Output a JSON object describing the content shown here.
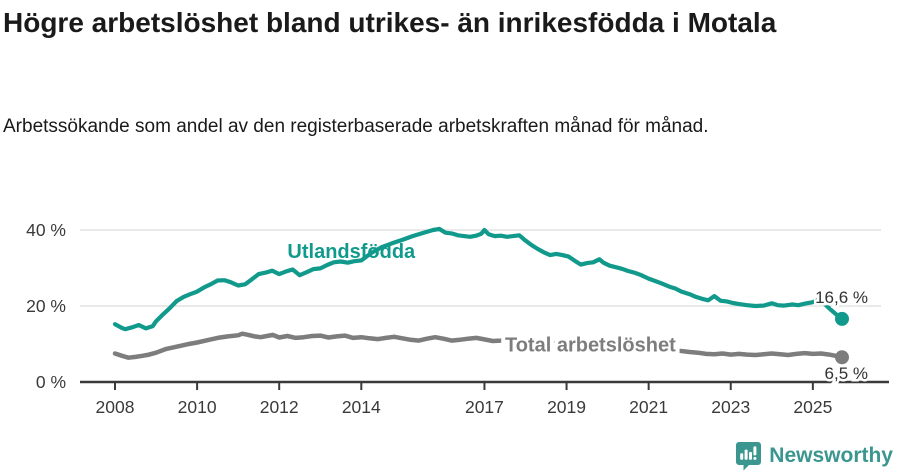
{
  "header": {
    "title": "Högre arbetslöshet bland utrikes- än inrikesfödda i Motala",
    "subtitle": "Arbetssökande som andel av den registerbaserade arbetskraften månad för månad."
  },
  "footer": {
    "brand": "Newsworthy",
    "logo_icon": "newsworthy-bubble-barchart-icon",
    "brand_color": "#3a968f"
  },
  "colors": {
    "foreign_born_line": "#119a8c",
    "total_line": "#7d7d7d",
    "axis": "#3a3a3a",
    "grid": "#e2e2e2",
    "text": "#1a1a1a"
  },
  "chart_data": {
    "type": "line",
    "title": "Högre arbetslöshet bland utrikes- än inrikesfödda i Motala",
    "subtitle": "Arbetssökande som andel av den registerbaserade arbetskraften månad för månad.",
    "unit": "%",
    "grid": "horizontal",
    "legend_position": "inline-labels",
    "xlim": [
      2007.75,
      2026.1
    ],
    "ylim": [
      0,
      43
    ],
    "x_ticks": [
      {
        "value": 2008,
        "label": "2008"
      },
      {
        "value": 2010,
        "label": "2010"
      },
      {
        "value": 2012,
        "label": "2012"
      },
      {
        "value": 2014,
        "label": "2014"
      },
      {
        "value": 2017,
        "label": "2017"
      },
      {
        "value": 2019,
        "label": "2019"
      },
      {
        "value": 2021,
        "label": "2021"
      },
      {
        "value": 2023,
        "label": "2023"
      },
      {
        "value": 2025,
        "label": "2025"
      }
    ],
    "y_ticks": [
      {
        "value": 0,
        "label": "0 %"
      },
      {
        "value": 20,
        "label": "20 %"
      },
      {
        "value": 40,
        "label": "40 %"
      }
    ],
    "series": [
      {
        "name": "Utlandsfödda",
        "color": "#119a8c",
        "line_width": 4.2,
        "label_anchor": {
          "x": 2012.2,
          "y": 32.6
        },
        "end_label": "16,6 %",
        "end_value": 16.6,
        "points": [
          [
            2008.0,
            15.2
          ],
          [
            2008.17,
            14.2
          ],
          [
            2008.25,
            13.9
          ],
          [
            2008.42,
            14.4
          ],
          [
            2008.58,
            15.0
          ],
          [
            2008.75,
            14.1
          ],
          [
            2008.92,
            14.7
          ],
          [
            2009.0,
            16.0
          ],
          [
            2009.17,
            17.8
          ],
          [
            2009.33,
            19.4
          ],
          [
            2009.5,
            21.3
          ],
          [
            2009.67,
            22.4
          ],
          [
            2009.83,
            23.1
          ],
          [
            2010.0,
            23.8
          ],
          [
            2010.17,
            24.9
          ],
          [
            2010.33,
            25.7
          ],
          [
            2010.5,
            26.7
          ],
          [
            2010.67,
            26.8
          ],
          [
            2010.83,
            26.2
          ],
          [
            2011.0,
            25.4
          ],
          [
            2011.17,
            25.7
          ],
          [
            2011.33,
            27.0
          ],
          [
            2011.5,
            28.4
          ],
          [
            2011.67,
            28.8
          ],
          [
            2011.83,
            29.3
          ],
          [
            2012.0,
            28.4
          ],
          [
            2012.17,
            29.1
          ],
          [
            2012.33,
            29.6
          ],
          [
            2012.5,
            28.1
          ],
          [
            2012.67,
            28.9
          ],
          [
            2012.83,
            29.7
          ],
          [
            2013.0,
            29.9
          ],
          [
            2013.17,
            30.8
          ],
          [
            2013.33,
            31.5
          ],
          [
            2013.5,
            31.7
          ],
          [
            2013.67,
            31.4
          ],
          [
            2013.83,
            31.8
          ],
          [
            2014.0,
            32.0
          ],
          [
            2014.25,
            34.0
          ],
          [
            2014.5,
            35.5
          ],
          [
            2014.75,
            36.5
          ],
          [
            2015.0,
            37.4
          ],
          [
            2015.25,
            38.4
          ],
          [
            2015.5,
            39.2
          ],
          [
            2015.75,
            40.0
          ],
          [
            2015.9,
            40.3
          ],
          [
            2016.05,
            39.3
          ],
          [
            2016.2,
            39.1
          ],
          [
            2016.35,
            38.6
          ],
          [
            2016.5,
            38.4
          ],
          [
            2016.65,
            38.2
          ],
          [
            2016.8,
            38.5
          ],
          [
            2016.92,
            39.0
          ],
          [
            2017.0,
            40.0
          ],
          [
            2017.1,
            38.9
          ],
          [
            2017.25,
            38.4
          ],
          [
            2017.4,
            38.5
          ],
          [
            2017.55,
            38.2
          ],
          [
            2017.7,
            38.4
          ],
          [
            2017.85,
            38.6
          ],
          [
            2018.0,
            37.2
          ],
          [
            2018.15,
            36.0
          ],
          [
            2018.3,
            35.0
          ],
          [
            2018.45,
            34.1
          ],
          [
            2018.6,
            33.4
          ],
          [
            2018.75,
            33.7
          ],
          [
            2018.9,
            33.4
          ],
          [
            2019.05,
            33.0
          ],
          [
            2019.2,
            31.9
          ],
          [
            2019.35,
            30.9
          ],
          [
            2019.5,
            31.3
          ],
          [
            2019.65,
            31.5
          ],
          [
            2019.8,
            32.3
          ],
          [
            2019.9,
            31.4
          ],
          [
            2020.05,
            30.6
          ],
          [
            2020.2,
            30.2
          ],
          [
            2020.35,
            29.8
          ],
          [
            2020.5,
            29.2
          ],
          [
            2020.65,
            28.8
          ],
          [
            2020.8,
            28.2
          ],
          [
            2021.0,
            27.2
          ],
          [
            2021.15,
            26.6
          ],
          [
            2021.3,
            26.0
          ],
          [
            2021.5,
            25.1
          ],
          [
            2021.65,
            24.6
          ],
          [
            2021.8,
            23.8
          ],
          [
            2022.0,
            23.1
          ],
          [
            2022.15,
            22.4
          ],
          [
            2022.3,
            21.9
          ],
          [
            2022.45,
            21.5
          ],
          [
            2022.6,
            22.6
          ],
          [
            2022.75,
            21.4
          ],
          [
            2022.9,
            21.2
          ],
          [
            2023.05,
            20.8
          ],
          [
            2023.2,
            20.5
          ],
          [
            2023.4,
            20.2
          ],
          [
            2023.6,
            20.0
          ],
          [
            2023.8,
            20.1
          ],
          [
            2024.0,
            20.7
          ],
          [
            2024.15,
            20.2
          ],
          [
            2024.3,
            20.1
          ],
          [
            2024.5,
            20.4
          ],
          [
            2024.65,
            20.2
          ],
          [
            2024.8,
            20.6
          ],
          [
            2025.0,
            21.0
          ],
          [
            2025.15,
            21.7
          ],
          [
            2025.3,
            20.4
          ],
          [
            2025.45,
            18.9
          ],
          [
            2025.6,
            17.5
          ],
          [
            2025.71,
            16.6
          ]
        ]
      },
      {
        "name": "Total arbetslöshet",
        "color": "#7d7d7d",
        "line_width": 4.5,
        "label_anchor": {
          "x": 2017.5,
          "y": 8.0
        },
        "end_label": "6,5 %",
        "end_value": 6.5,
        "points": [
          [
            2008.0,
            7.5
          ],
          [
            2008.17,
            6.9
          ],
          [
            2008.33,
            6.4
          ],
          [
            2008.5,
            6.6
          ],
          [
            2008.67,
            6.9
          ],
          [
            2008.83,
            7.2
          ],
          [
            2009.0,
            7.7
          ],
          [
            2009.25,
            8.7
          ],
          [
            2009.5,
            9.3
          ],
          [
            2009.75,
            9.9
          ],
          [
            2010.0,
            10.4
          ],
          [
            2010.25,
            11.0
          ],
          [
            2010.5,
            11.6
          ],
          [
            2010.75,
            12.0
          ],
          [
            2011.0,
            12.3
          ],
          [
            2011.1,
            12.7
          ],
          [
            2011.25,
            12.4
          ],
          [
            2011.4,
            12.0
          ],
          [
            2011.55,
            11.8
          ],
          [
            2011.7,
            12.1
          ],
          [
            2011.85,
            12.4
          ],
          [
            2012.0,
            11.7
          ],
          [
            2012.2,
            12.1
          ],
          [
            2012.4,
            11.6
          ],
          [
            2012.6,
            11.8
          ],
          [
            2012.8,
            12.1
          ],
          [
            2013.0,
            12.2
          ],
          [
            2013.2,
            11.7
          ],
          [
            2013.4,
            12.0
          ],
          [
            2013.6,
            12.2
          ],
          [
            2013.8,
            11.6
          ],
          [
            2014.0,
            11.8
          ],
          [
            2014.2,
            11.5
          ],
          [
            2014.4,
            11.3
          ],
          [
            2014.6,
            11.6
          ],
          [
            2014.8,
            11.9
          ],
          [
            2015.0,
            11.5
          ],
          [
            2015.2,
            11.1
          ],
          [
            2015.4,
            10.9
          ],
          [
            2015.6,
            11.4
          ],
          [
            2015.8,
            11.8
          ],
          [
            2016.0,
            11.4
          ],
          [
            2016.2,
            10.9
          ],
          [
            2016.4,
            11.1
          ],
          [
            2016.6,
            11.4
          ],
          [
            2016.8,
            11.6
          ],
          [
            2017.0,
            11.2
          ],
          [
            2017.2,
            10.8
          ],
          [
            2017.4,
            10.9
          ],
          [
            2017.6,
            11.1
          ],
          [
            2017.8,
            10.9
          ],
          [
            2018.0,
            10.7
          ],
          [
            2018.25,
            10.3
          ],
          [
            2018.5,
            10.0
          ],
          [
            2018.75,
            10.2
          ],
          [
            2019.0,
            10.0
          ],
          [
            2019.25,
            9.7
          ],
          [
            2019.5,
            9.8
          ],
          [
            2019.75,
            10.0
          ],
          [
            2020.0,
            9.8
          ],
          [
            2020.25,
            10.2
          ],
          [
            2020.5,
            10.0
          ],
          [
            2020.75,
            9.6
          ],
          [
            2021.0,
            9.3
          ],
          [
            2021.25,
            8.9
          ],
          [
            2021.5,
            8.5
          ],
          [
            2021.75,
            8.2
          ],
          [
            2022.0,
            7.9
          ],
          [
            2022.2,
            7.7
          ],
          [
            2022.4,
            7.4
          ],
          [
            2022.6,
            7.3
          ],
          [
            2022.8,
            7.5
          ],
          [
            2023.0,
            7.2
          ],
          [
            2023.2,
            7.4
          ],
          [
            2023.4,
            7.2
          ],
          [
            2023.6,
            7.1
          ],
          [
            2023.8,
            7.3
          ],
          [
            2024.0,
            7.5
          ],
          [
            2024.2,
            7.3
          ],
          [
            2024.4,
            7.1
          ],
          [
            2024.6,
            7.4
          ],
          [
            2024.8,
            7.6
          ],
          [
            2025.0,
            7.4
          ],
          [
            2025.2,
            7.5
          ],
          [
            2025.4,
            7.2
          ],
          [
            2025.55,
            6.9
          ],
          [
            2025.71,
            6.5
          ]
        ]
      }
    ]
  }
}
